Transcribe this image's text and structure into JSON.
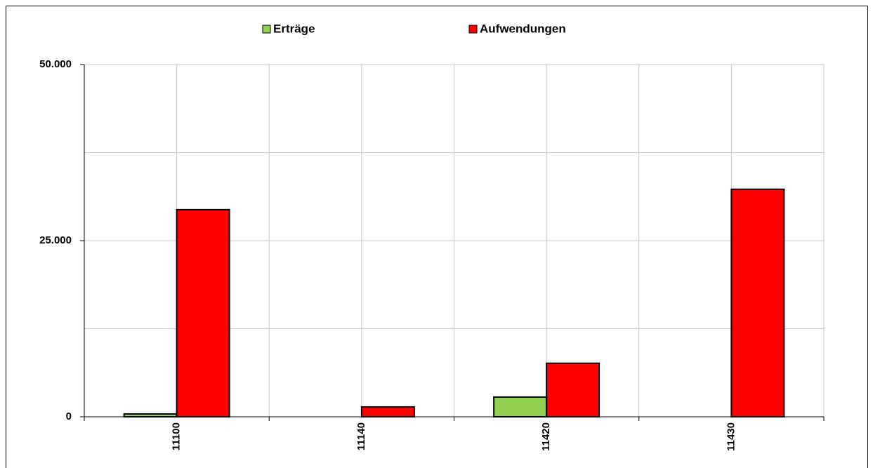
{
  "chart_data": {
    "type": "bar",
    "categories": [
      "11100",
      "11140",
      "11420",
      "11430"
    ],
    "series": [
      {
        "name": "Erträge",
        "color": "#92d050",
        "values": [
          400,
          0,
          2800,
          0
        ]
      },
      {
        "name": "Aufwendungen",
        "color": "#ff0000",
        "values": [
          29400,
          1400,
          7600,
          32300
        ]
      }
    ],
    "ylim": [
      0,
      50000
    ],
    "yticks": [
      0,
      {
        "value": 25000,
        "label": "25.000"
      },
      {
        "value": 50000,
        "label": "50.000"
      }
    ],
    "minor_ygrid": [
      12500,
      37500
    ],
    "grid": true,
    "legend": "top"
  }
}
